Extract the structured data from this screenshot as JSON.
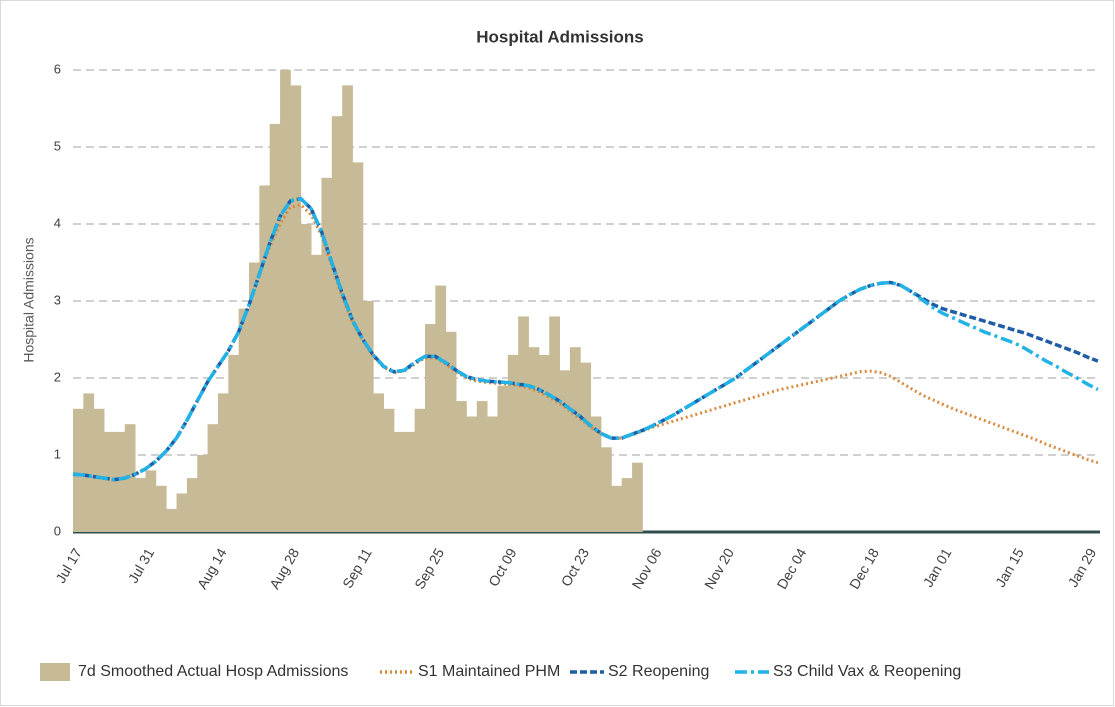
{
  "chart_data": {
    "type": "line",
    "title": "Hospital Admissions",
    "ylabel": "Hospital Admissions",
    "categories": [
      "Jul 17",
      null,
      null,
      null,
      null,
      null,
      null,
      "Jul 31",
      null,
      null,
      null,
      null,
      null,
      null,
      "Aug 14",
      null,
      null,
      null,
      null,
      null,
      null,
      "Aug 28",
      null,
      null,
      null,
      null,
      null,
      null,
      "Sep 11",
      null,
      null,
      null,
      null,
      null,
      null,
      "Sep 25",
      null,
      null,
      null,
      null,
      null,
      null,
      "Oct 09",
      null,
      null,
      null,
      null,
      null,
      null,
      "Oct 23",
      null,
      null,
      null,
      null,
      null,
      null,
      "Nov 06",
      null,
      null,
      null,
      null,
      null,
      null,
      "Nov 20",
      null,
      null,
      null,
      null,
      null,
      null,
      "Dec 04",
      null,
      null,
      null,
      null,
      null,
      null,
      "Dec 18",
      null,
      null,
      null,
      null,
      null,
      null,
      "Jan 01",
      null,
      null,
      null,
      null,
      null,
      null,
      "Jan 15",
      null,
      null,
      null,
      null,
      null,
      null,
      "Jan 29",
      null
    ],
    "series": [
      {
        "name": "7d Smoothed Actual Hosp Admissions",
        "type": "bar",
        "color": "#c6bb96",
        "values": [
          1.6,
          1.8,
          1.6,
          1.3,
          1.3,
          1.4,
          0.7,
          0.8,
          0.6,
          0.3,
          0.5,
          0.7,
          1.0,
          1.4,
          1.8,
          2.3,
          2.9,
          3.5,
          4.5,
          5.3,
          6.0,
          5.8,
          4.0,
          3.6,
          4.6,
          5.4,
          5.8,
          4.8,
          3.0,
          1.8,
          1.6,
          1.3,
          1.3,
          1.6,
          2.7,
          3.2,
          2.6,
          1.7,
          1.5,
          1.7,
          1.5,
          1.9,
          2.3,
          2.8,
          2.4,
          2.3,
          2.8,
          2.1,
          2.4,
          2.2,
          1.5,
          1.1,
          0.6,
          0.7,
          0.9,
          null,
          null,
          null,
          null,
          null,
          null,
          null,
          null,
          null,
          null,
          null,
          null,
          null,
          null,
          null,
          null,
          null,
          null,
          null,
          null,
          null,
          null,
          null,
          null,
          null,
          null,
          null,
          null,
          null,
          null,
          null,
          null,
          null,
          null,
          null,
          null,
          null,
          null,
          null,
          null,
          null,
          null,
          null,
          null,
          null
        ]
      },
      {
        "name": "S1 Maintained PHM",
        "type": "line",
        "color": "#d98a3d",
        "dash": "dotted",
        "values": [
          0.75,
          0.74,
          0.72,
          0.7,
          0.68,
          0.7,
          0.75,
          0.82,
          0.92,
          1.05,
          1.22,
          1.45,
          1.7,
          1.95,
          2.15,
          2.35,
          2.6,
          2.95,
          3.35,
          3.7,
          4.0,
          4.22,
          4.25,
          4.12,
          3.85,
          3.45,
          3.05,
          2.72,
          2.48,
          2.28,
          2.14,
          2.07,
          2.09,
          2.18,
          2.26,
          2.26,
          2.18,
          2.08,
          2.0,
          1.96,
          1.94,
          1.93,
          1.92,
          1.9,
          1.87,
          1.82,
          1.75,
          1.67,
          1.57,
          1.47,
          1.36,
          1.27,
          1.22,
          1.22,
          1.26,
          1.31,
          1.36,
          1.4,
          1.44,
          1.48,
          1.52,
          1.56,
          1.6,
          1.64,
          1.68,
          1.72,
          1.76,
          1.8,
          1.84,
          1.87,
          1.9,
          1.93,
          1.96,
          1.99,
          2.02,
          2.05,
          2.08,
          2.09,
          2.07,
          2.02,
          1.94,
          1.86,
          1.78,
          1.72,
          1.66,
          1.6,
          1.55,
          1.5,
          1.45,
          1.4,
          1.35,
          1.3,
          1.25,
          1.2,
          1.14,
          1.09,
          1.04,
          0.99,
          0.94,
          0.9
        ]
      },
      {
        "name": "S2 Reopening",
        "type": "line",
        "color": "#1f5ea6",
        "dash": "dashed",
        "values": [
          0.75,
          0.74,
          0.72,
          0.7,
          0.68,
          0.7,
          0.75,
          0.82,
          0.92,
          1.05,
          1.22,
          1.45,
          1.7,
          1.95,
          2.15,
          2.35,
          2.6,
          2.95,
          3.35,
          3.75,
          4.1,
          4.3,
          4.33,
          4.2,
          3.9,
          3.5,
          3.1,
          2.75,
          2.5,
          2.3,
          2.15,
          2.08,
          2.1,
          2.2,
          2.28,
          2.28,
          2.2,
          2.1,
          2.02,
          1.98,
          1.96,
          1.95,
          1.94,
          1.92,
          1.9,
          1.85,
          1.78,
          1.7,
          1.6,
          1.5,
          1.38,
          1.28,
          1.22,
          1.22,
          1.27,
          1.32,
          1.38,
          1.45,
          1.52,
          1.6,
          1.68,
          1.76,
          1.84,
          1.92,
          2.0,
          2.1,
          2.2,
          2.3,
          2.4,
          2.5,
          2.6,
          2.7,
          2.8,
          2.9,
          3.0,
          3.08,
          3.15,
          3.2,
          3.23,
          3.24,
          3.2,
          3.12,
          3.04,
          2.96,
          2.9,
          2.86,
          2.82,
          2.78,
          2.74,
          2.7,
          2.66,
          2.62,
          2.58,
          2.53,
          2.48,
          2.43,
          2.38,
          2.33,
          2.27,
          2.22
        ]
      },
      {
        "name": "S3 Child Vax & Reopening",
        "type": "line",
        "color": "#21b3e6",
        "dash": "dashdot",
        "values": [
          0.75,
          0.74,
          0.72,
          0.7,
          0.68,
          0.7,
          0.75,
          0.82,
          0.92,
          1.05,
          1.22,
          1.45,
          1.7,
          1.95,
          2.15,
          2.35,
          2.6,
          2.95,
          3.35,
          3.75,
          4.1,
          4.3,
          4.33,
          4.2,
          3.9,
          3.5,
          3.1,
          2.75,
          2.5,
          2.3,
          2.15,
          2.08,
          2.1,
          2.2,
          2.28,
          2.28,
          2.2,
          2.1,
          2.02,
          1.98,
          1.96,
          1.95,
          1.94,
          1.92,
          1.9,
          1.85,
          1.78,
          1.7,
          1.6,
          1.5,
          1.38,
          1.28,
          1.22,
          1.22,
          1.27,
          1.32,
          1.38,
          1.45,
          1.52,
          1.6,
          1.68,
          1.76,
          1.84,
          1.92,
          2.0,
          2.1,
          2.2,
          2.3,
          2.4,
          2.5,
          2.6,
          2.7,
          2.8,
          2.9,
          3.0,
          3.08,
          3.15,
          3.2,
          3.23,
          3.24,
          3.2,
          3.12,
          3.02,
          2.92,
          2.84,
          2.78,
          2.72,
          2.66,
          2.6,
          2.55,
          2.5,
          2.45,
          2.38,
          2.3,
          2.22,
          2.15,
          2.07,
          2.0,
          1.92,
          1.85
        ]
      }
    ],
    "ylim": [
      0,
      6
    ],
    "yticks": [
      0,
      1,
      2,
      3,
      4,
      5,
      6
    ],
    "grid": true,
    "legend": "bottom"
  }
}
